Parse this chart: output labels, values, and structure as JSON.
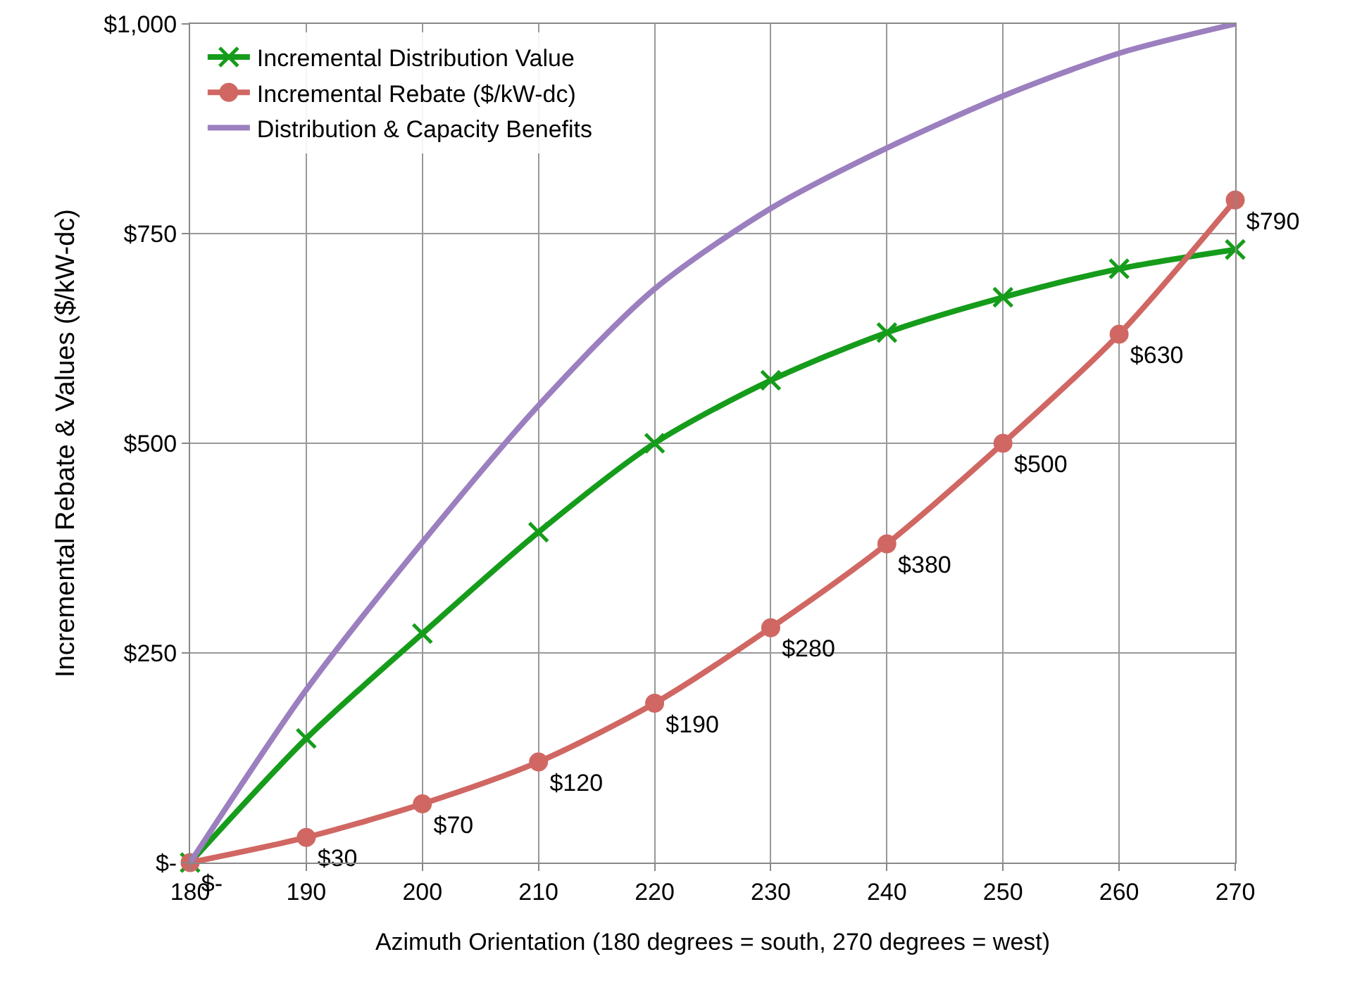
{
  "chart_data": {
    "type": "line",
    "xlabel": "Azimuth Orientation (180 degrees = south, 270 degrees = west)",
    "ylabel": "Incremental Rebate & Values ($/kW-dc)",
    "x": [
      180,
      190,
      200,
      210,
      220,
      230,
      240,
      250,
      260,
      270
    ],
    "series": [
      {
        "name": "Incremental Distribution Value",
        "color": "#169c1b",
        "marker": "cross",
        "values": [
          0,
          148,
          273,
          394,
          500,
          575,
          632,
          674,
          708,
          731
        ]
      },
      {
        "name": "Incremental Rebate ($/kW-dc)",
        "color": "#d06763",
        "marker": "circle",
        "values": [
          0,
          30,
          70,
          120,
          190,
          280,
          380,
          500,
          630,
          790
        ],
        "value_labels": [
          "$-",
          "$30",
          "$70",
          "$120",
          "$190",
          "$280",
          "$380",
          "$500",
          "$630",
          "$790"
        ]
      },
      {
        "name": "Distribution & Capacity Benefits",
        "color": "#9b7fbf",
        "marker": "none",
        "values": [
          0,
          206,
          382,
          545,
          684,
          780,
          852,
          914,
          965,
          1000
        ]
      }
    ],
    "xlim": [
      180,
      270
    ],
    "xticks": [
      180,
      190,
      200,
      210,
      220,
      230,
      240,
      250,
      260,
      270
    ],
    "ylim": [
      0,
      1000
    ],
    "yticks": [
      {
        "value": 0,
        "label": "$-"
      },
      {
        "value": 250,
        "label": "$250"
      },
      {
        "value": 500,
        "label": "$500"
      },
      {
        "value": 750,
        "label": "$750"
      },
      {
        "value": 1000,
        "label": "$1,000"
      }
    ],
    "grid": true,
    "legend": "top left",
    "line_style": "solid"
  }
}
